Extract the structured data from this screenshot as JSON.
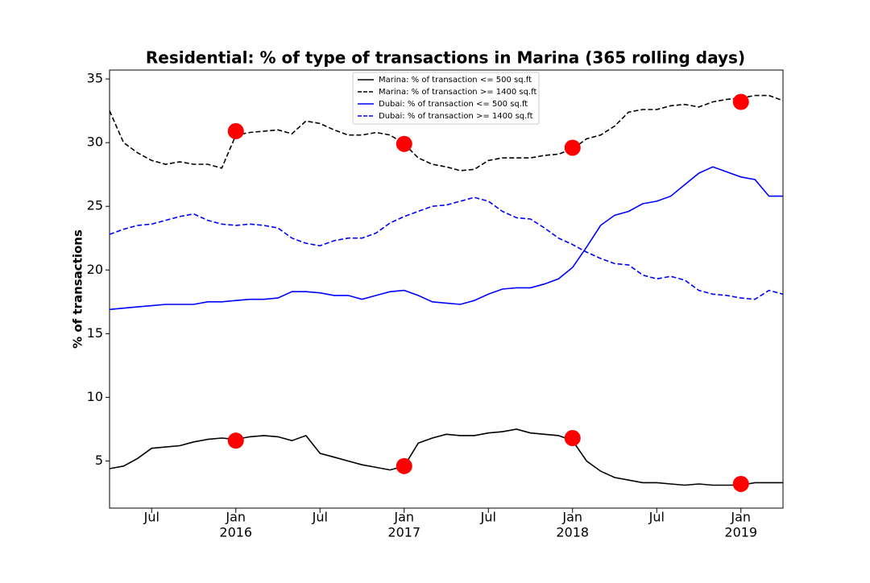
{
  "chart_data": {
    "type": "line",
    "title": "Residential: % of type of transactions in Marina (365 rolling days)",
    "y_label": "% of transactions",
    "x": [
      "2015-04",
      "2015-05",
      "2015-06",
      "2015-07",
      "2015-08",
      "2015-09",
      "2015-10",
      "2015-11",
      "2015-12",
      "2016-01",
      "2016-02",
      "2016-03",
      "2016-04",
      "2016-05",
      "2016-06",
      "2016-07",
      "2016-08",
      "2016-09",
      "2016-10",
      "2016-11",
      "2016-12",
      "2017-01",
      "2017-02",
      "2017-03",
      "2017-04",
      "2017-05",
      "2017-06",
      "2017-07",
      "2017-08",
      "2017-09",
      "2017-10",
      "2017-11",
      "2017-12",
      "2018-01",
      "2018-02",
      "2018-03",
      "2018-04",
      "2018-05",
      "2018-06",
      "2018-07",
      "2018-08",
      "2018-09",
      "2018-10",
      "2018-11",
      "2018-12",
      "2019-01",
      "2019-02",
      "2019-03",
      "2019-04"
    ],
    "series": [
      {
        "name": "Marina: % of transaction <= 500 sq.ft",
        "color": "#000000",
        "linestyle": "solid",
        "values": [
          4.4,
          4.6,
          5.2,
          6.0,
          6.1,
          6.2,
          6.5,
          6.7,
          6.8,
          6.7,
          6.9,
          7.0,
          6.9,
          6.6,
          7.0,
          5.6,
          5.3,
          5.0,
          4.7,
          4.5,
          4.3,
          4.6,
          6.4,
          6.8,
          7.1,
          7.0,
          7.0,
          7.2,
          7.3,
          7.5,
          7.2,
          7.1,
          7.0,
          6.6,
          5.0,
          4.2,
          3.7,
          3.5,
          3.3,
          3.3,
          3.2,
          3.1,
          3.2,
          3.1,
          3.1,
          3.1,
          3.3,
          3.3,
          3.3
        ]
      },
      {
        "name": "Marina: % of transaction >= 1400 sq.ft",
        "color": "#000000",
        "linestyle": "dashed",
        "values": [
          32.5,
          30.0,
          29.2,
          28.6,
          28.3,
          28.5,
          28.3,
          28.3,
          28.0,
          30.6,
          30.8,
          30.9,
          31.0,
          30.7,
          31.7,
          31.5,
          31.0,
          30.6,
          30.6,
          30.8,
          30.6,
          29.9,
          28.8,
          28.3,
          28.1,
          27.8,
          27.9,
          28.6,
          28.8,
          28.8,
          28.8,
          29.0,
          29.1,
          29.5,
          30.3,
          30.6,
          31.3,
          32.4,
          32.6,
          32.6,
          32.9,
          33.0,
          32.8,
          33.2,
          33.4,
          33.5,
          33.7,
          33.7,
          33.3
        ]
      },
      {
        "name": "Dubai: % of transaction <= 500 sq.ft",
        "color": "#0000ff",
        "linestyle": "solid",
        "values": [
          16.9,
          17.0,
          17.1,
          17.2,
          17.3,
          17.3,
          17.3,
          17.5,
          17.5,
          17.6,
          17.7,
          17.7,
          17.8,
          18.3,
          18.3,
          18.2,
          18.0,
          18.0,
          17.7,
          18.0,
          18.3,
          18.4,
          18.0,
          17.5,
          17.4,
          17.3,
          17.6,
          18.1,
          18.5,
          18.6,
          18.6,
          18.9,
          19.3,
          20.2,
          21.8,
          23.5,
          24.3,
          24.6,
          25.2,
          25.4,
          25.8,
          26.7,
          27.6,
          28.1,
          27.7,
          27.3,
          27.1,
          25.8,
          25.8
        ]
      },
      {
        "name": "Dubai: % of transaction >= 1400 sq.ft",
        "color": "#0000ff",
        "linestyle": "dashed",
        "values": [
          22.8,
          23.2,
          23.5,
          23.6,
          23.9,
          24.2,
          24.4,
          23.9,
          23.6,
          23.5,
          23.6,
          23.5,
          23.3,
          22.5,
          22.1,
          21.9,
          22.3,
          22.5,
          22.5,
          22.9,
          23.7,
          24.2,
          24.6,
          25.0,
          25.1,
          25.4,
          25.7,
          25.4,
          24.6,
          24.1,
          24.0,
          23.3,
          22.5,
          22.0,
          21.4,
          20.9,
          20.5,
          20.4,
          19.6,
          19.3,
          19.5,
          19.2,
          18.4,
          18.1,
          18.0,
          17.8,
          17.7,
          18.4,
          18.1
        ]
      }
    ],
    "highlights": [
      {
        "color": "#ff0000",
        "x": [
          "2016-01",
          "2017-01",
          "2018-01",
          "2019-01"
        ],
        "values": [
          30.9,
          29.9,
          29.6,
          33.2
        ]
      },
      {
        "color": "#ff0000",
        "x": [
          "2016-01",
          "2017-01",
          "2018-01",
          "2019-01"
        ],
        "values": [
          6.6,
          4.6,
          6.8,
          3.2
        ]
      }
    ],
    "xlim": [
      "2015-04",
      "2019-04"
    ],
    "xticks": [
      {
        "value": "2015-07",
        "label": "Jul"
      },
      {
        "value": "2016-01",
        "label": "Jan",
        "year": "2016"
      },
      {
        "value": "2016-07",
        "label": "Jul"
      },
      {
        "value": "2017-01",
        "label": "Jan",
        "year": "2017"
      },
      {
        "value": "2017-07",
        "label": "Jul"
      },
      {
        "value": "2018-01",
        "label": "Jan",
        "year": "2018"
      },
      {
        "value": "2018-07",
        "label": "Jul"
      },
      {
        "value": "2019-01",
        "label": "Jan",
        "year": "2019"
      }
    ],
    "ylim": [
      1.3,
      35.7
    ],
    "yticks": [
      5,
      10,
      15,
      20,
      25,
      30,
      35
    ],
    "legend": "upper center"
  }
}
